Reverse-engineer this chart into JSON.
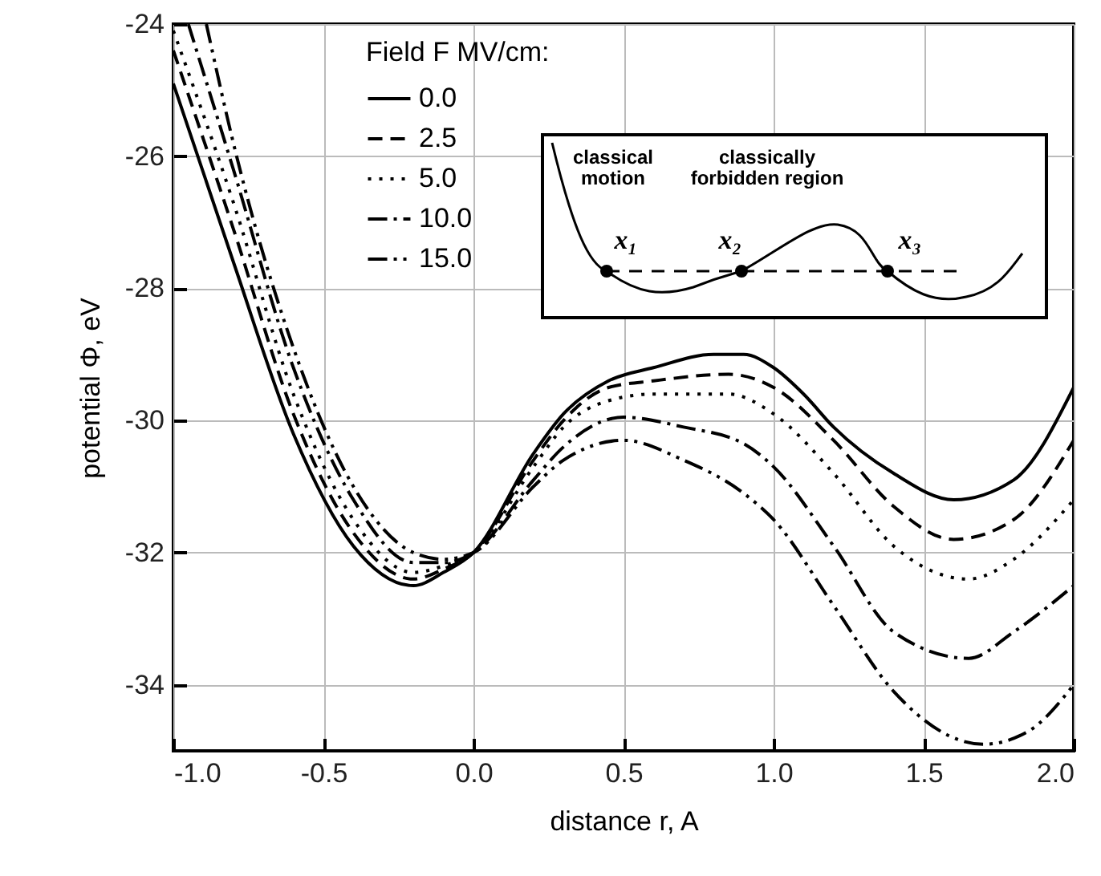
{
  "chart_data": {
    "type": "line",
    "xlabel": "distance r, A",
    "ylabel": "potential Φ, eV",
    "legend_title": "Field F MV/cm:",
    "xlim": [
      -1.0,
      2.0
    ],
    "ylim": [
      -35,
      -24
    ],
    "xticks": [
      {
        "value": -1,
        "label": "-1.0"
      },
      {
        "value": -0.5,
        "label": "-0.5"
      },
      {
        "value": 0,
        "label": "0.0"
      },
      {
        "value": 0.5,
        "label": "0.5"
      },
      {
        "value": 1,
        "label": "1.0"
      },
      {
        "value": 1.5,
        "label": "1.5"
      },
      {
        "value": 2,
        "label": "2.0"
      }
    ],
    "yticks": [
      -34,
      -32,
      -30,
      -28,
      -26,
      -24
    ],
    "grid": true,
    "legend": "top left",
    "annotations": [
      "classical motion",
      "classically forbidden region",
      "x₁",
      "x₂",
      "x₃"
    ],
    "series": [
      {
        "name": "0.0",
        "color": "#000000",
        "line_style": "solid",
        "x": [
          -1,
          -0.8,
          -0.6,
          -0.4,
          -0.2,
          -0.1,
          0,
          0.2,
          0.3,
          0.45,
          0.6,
          0.8,
          0.9,
          1.0,
          1.1,
          1.2,
          1.4,
          1.6,
          1.8,
          2.0
        ],
        "values": [
          -24.9,
          -27.6,
          -30.2,
          -31.9,
          -32.5,
          -32.3,
          -32.0,
          -30.5,
          -29.9,
          -29.4,
          -29.2,
          -29.0,
          -29.0,
          -29.2,
          -29.6,
          -30.1,
          -30.8,
          -31.2,
          -30.9,
          -29.5
        ]
      },
      {
        "name": "2.5",
        "color": "#000000",
        "line_style": "dashed",
        "x": [
          -1,
          -0.8,
          -0.6,
          -0.4,
          -0.2,
          -0.1,
          0,
          0.2,
          0.3,
          0.45,
          0.6,
          0.85,
          1.0,
          1.2,
          1.4,
          1.6,
          1.8,
          2.0
        ],
        "values": [
          -24.4,
          -27.1,
          -29.9,
          -31.7,
          -32.4,
          -32.25,
          -32.0,
          -30.6,
          -30.0,
          -29.5,
          -29.4,
          -29.3,
          -29.5,
          -30.3,
          -31.3,
          -31.8,
          -31.5,
          -30.3
        ]
      },
      {
        "name": "5.0",
        "color": "#000000",
        "line_style": "dotted",
        "x": [
          -1,
          -0.8,
          -0.6,
          -0.4,
          -0.2,
          -0.1,
          0,
          0.2,
          0.3,
          0.45,
          0.6,
          0.85,
          1.0,
          1.2,
          1.4,
          1.65,
          1.8,
          2.0
        ],
        "values": [
          -24.1,
          -26.7,
          -29.6,
          -31.5,
          -32.3,
          -32.2,
          -32.0,
          -30.7,
          -30.1,
          -29.7,
          -29.6,
          -29.6,
          -29.9,
          -30.8,
          -31.9,
          -32.4,
          -32.1,
          -31.2
        ]
      },
      {
        "name": "10.0",
        "color": "#000000",
        "line_style": "dashdot",
        "x": [
          -0.95,
          -0.8,
          -0.6,
          -0.4,
          -0.2,
          -0.1,
          0,
          0.2,
          0.3,
          0.5,
          0.7,
          0.9,
          1.0,
          1.2,
          1.4,
          1.65,
          1.8,
          2.0
        ],
        "values": [
          -24.0,
          -26.2,
          -29.2,
          -31.2,
          -32.15,
          -32.15,
          -32.0,
          -30.9,
          -30.4,
          -29.95,
          -30.1,
          -30.35,
          -30.7,
          -31.9,
          -33.2,
          -33.6,
          -33.2,
          -32.5
        ]
      },
      {
        "name": "15.0",
        "color": "#000000",
        "line_style": "dashdotdot",
        "x": [
          -0.89,
          -0.8,
          -0.6,
          -0.4,
          -0.2,
          -0.1,
          0,
          0.2,
          0.3,
          0.5,
          0.7,
          0.9,
          1.0,
          1.2,
          1.4,
          1.7,
          1.85,
          2.0
        ],
        "values": [
          -24.0,
          -25.8,
          -28.9,
          -31.0,
          -32.0,
          -32.1,
          -32.0,
          -31.0,
          -30.6,
          -30.3,
          -30.6,
          -31.1,
          -31.5,
          -32.8,
          -34.1,
          -34.9,
          -34.7,
          -34.0
        ]
      }
    ]
  }
}
